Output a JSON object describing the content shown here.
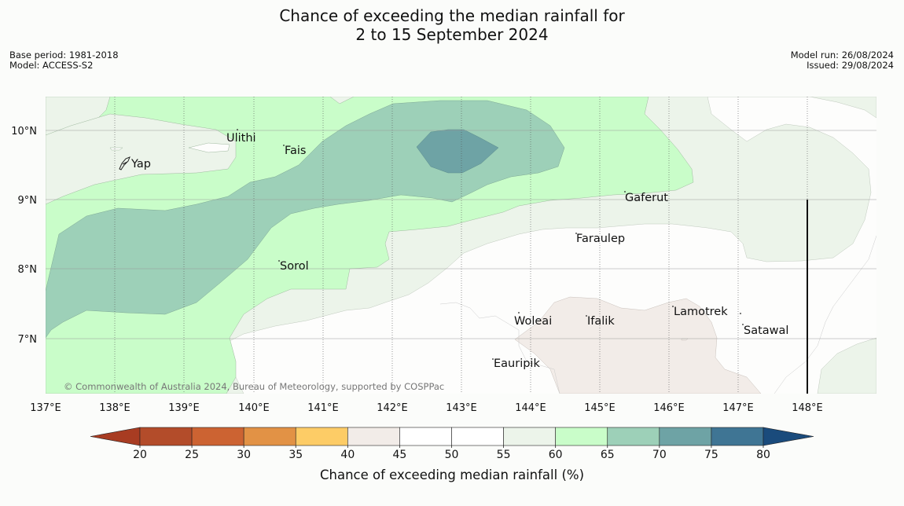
{
  "title": {
    "line1": "Chance of exceeding the median rainfall for",
    "line2": "2 to 15 September 2024"
  },
  "meta_left": {
    "base_period": "Base period: 1981-2018",
    "model": "Model: ACCESS-S2"
  },
  "meta_right": {
    "model_run": "Model run: 26/08/2024",
    "issued": "Issued: 29/08/2024"
  },
  "credit": "© Commonwealth of Australia 2024, Bureau of Meteorology, supported by COSPPac",
  "axes": {
    "lon_labels": [
      "137°E",
      "138°E",
      "139°E",
      "140°E",
      "141°E",
      "142°E",
      "143°E",
      "144°E",
      "145°E",
      "146°E",
      "147°E",
      "148°E"
    ],
    "lat_labels": [
      "10°N",
      "9°N",
      "8°N",
      "7°N"
    ]
  },
  "places": [
    {
      "name": "Yap",
      "icon": "island-outline-icon"
    },
    {
      "name": "Ulithi"
    },
    {
      "name": "Fais"
    },
    {
      "name": "Gaferut"
    },
    {
      "name": "Faraulep"
    },
    {
      "name": "Sorol"
    },
    {
      "name": "Woleai"
    },
    {
      "name": "Ifalik"
    },
    {
      "name": "Lamotrek"
    },
    {
      "name": "Satawal"
    },
    {
      "name": "Eauripik"
    }
  ],
  "colorbar": {
    "label": "Chance of exceeding median rainfall (%)",
    "ticks": [
      "20",
      "25",
      "30",
      "35",
      "40",
      "45",
      "50",
      "55",
      "60",
      "65",
      "70",
      "75",
      "80"
    ],
    "colors": [
      "#a83c22",
      "#b34c2a",
      "#cc6332",
      "#e29245",
      "#fdcc66",
      "#f2ece8",
      "#ffffff",
      "#ffffff",
      "#ecf4ea",
      "#c9fdc9",
      "#9dd0b8",
      "#6ea3a5",
      "#3f7594",
      "#1a4b7c"
    ],
    "extend": "both"
  },
  "legend_colors": {
    "c55_60": "#ecf4ea",
    "c60_65": "#c9fdc9",
    "c65_70": "#9dd0b8",
    "c70_75": "#6ea3a5",
    "c30_45": "#f2ece8"
  }
}
